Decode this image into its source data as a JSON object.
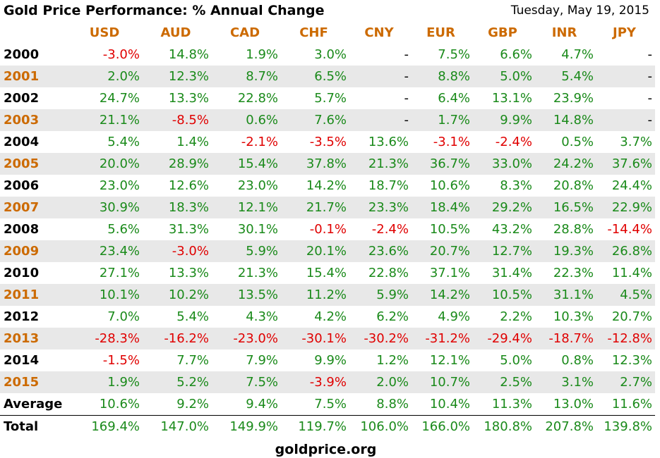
{
  "title": "Gold Price Performance: % Annual Change",
  "date": "Tuesday, May 19, 2015",
  "colors": {
    "header_orange": "#cc6a00",
    "positive_green": "#1a8a1a",
    "negative_red": "#e00000",
    "row_shade": "#e8e8e8"
  },
  "columns": [
    "USD",
    "AUD",
    "CAD",
    "CHF",
    "CNY",
    "EUR",
    "GBP",
    "INR",
    "JPY"
  ],
  "rows": [
    {
      "label": "2000",
      "values": [
        "-3.0%",
        "14.8%",
        "1.9%",
        "3.0%",
        "-",
        "7.5%",
        "6.6%",
        "4.7%",
        "-"
      ]
    },
    {
      "label": "2001",
      "values": [
        "2.0%",
        "12.3%",
        "8.7%",
        "6.5%",
        "-",
        "8.8%",
        "5.0%",
        "5.4%",
        "-"
      ]
    },
    {
      "label": "2002",
      "values": [
        "24.7%",
        "13.3%",
        "22.8%",
        "5.7%",
        "-",
        "6.4%",
        "13.1%",
        "23.9%",
        "-"
      ]
    },
    {
      "label": "2003",
      "values": [
        "21.1%",
        "-8.5%",
        "0.6%",
        "7.6%",
        "-",
        "1.7%",
        "9.9%",
        "14.8%",
        "-"
      ]
    },
    {
      "label": "2004",
      "values": [
        "5.4%",
        "1.4%",
        "-2.1%",
        "-3.5%",
        "13.6%",
        "-3.1%",
        "-2.4%",
        "0.5%",
        "3.7%"
      ]
    },
    {
      "label": "2005",
      "values": [
        "20.0%",
        "28.9%",
        "15.4%",
        "37.8%",
        "21.3%",
        "36.7%",
        "33.0%",
        "24.2%",
        "37.6%"
      ]
    },
    {
      "label": "2006",
      "values": [
        "23.0%",
        "12.6%",
        "23.0%",
        "14.2%",
        "18.7%",
        "10.6%",
        "8.3%",
        "20.8%",
        "24.4%"
      ]
    },
    {
      "label": "2007",
      "values": [
        "30.9%",
        "18.3%",
        "12.1%",
        "21.7%",
        "23.3%",
        "18.4%",
        "29.2%",
        "16.5%",
        "22.9%"
      ]
    },
    {
      "label": "2008",
      "values": [
        "5.6%",
        "31.3%",
        "30.1%",
        "-0.1%",
        "-2.4%",
        "10.5%",
        "43.2%",
        "28.8%",
        "-14.4%"
      ]
    },
    {
      "label": "2009",
      "values": [
        "23.4%",
        "-3.0%",
        "5.9%",
        "20.1%",
        "23.6%",
        "20.7%",
        "12.7%",
        "19.3%",
        "26.8%"
      ]
    },
    {
      "label": "2010",
      "values": [
        "27.1%",
        "13.3%",
        "21.3%",
        "15.4%",
        "22.8%",
        "37.1%",
        "31.4%",
        "22.3%",
        "11.4%"
      ]
    },
    {
      "label": "2011",
      "values": [
        "10.1%",
        "10.2%",
        "13.5%",
        "11.2%",
        "5.9%",
        "14.2%",
        "10.5%",
        "31.1%",
        "4.5%"
      ]
    },
    {
      "label": "2012",
      "values": [
        "7.0%",
        "5.4%",
        "4.3%",
        "4.2%",
        "6.2%",
        "4.9%",
        "2.2%",
        "10.3%",
        "20.7%"
      ]
    },
    {
      "label": "2013",
      "values": [
        "-28.3%",
        "-16.2%",
        "-23.0%",
        "-30.1%",
        "-30.2%",
        "-31.2%",
        "-29.4%",
        "-18.7%",
        "-12.8%"
      ]
    },
    {
      "label": "2014",
      "values": [
        "-1.5%",
        "7.7%",
        "7.9%",
        "9.9%",
        "1.2%",
        "12.1%",
        "5.0%",
        "0.8%",
        "12.3%"
      ]
    },
    {
      "label": "2015",
      "values": [
        "1.9%",
        "5.2%",
        "7.5%",
        "-3.9%",
        "2.0%",
        "10.7%",
        "2.5%",
        "3.1%",
        "2.7%"
      ]
    },
    {
      "label": "Average",
      "values": [
        "10.6%",
        "9.2%",
        "9.4%",
        "7.5%",
        "8.8%",
        "10.4%",
        "11.3%",
        "13.0%",
        "11.6%"
      ]
    }
  ],
  "total": {
    "label": "Total",
    "values": [
      "169.4%",
      "147.0%",
      "149.9%",
      "119.7%",
      "106.0%",
      "166.0%",
      "180.8%",
      "207.8%",
      "139.8%"
    ]
  },
  "footer": "goldprice.org"
}
